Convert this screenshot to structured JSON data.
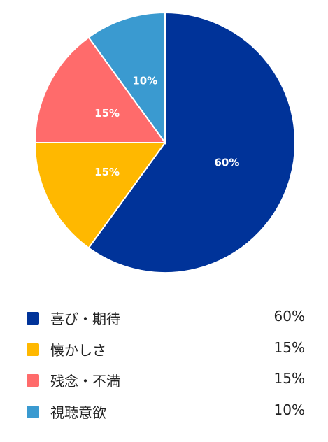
{
  "chart_data": {
    "type": "pie",
    "categories": [
      "喜び・期待",
      "懐かしさ",
      "残念・不満",
      "視聴意欲"
    ],
    "values": [
      60,
      15,
      15,
      10
    ],
    "labels": [
      "60%",
      "15%",
      "15%",
      "10%"
    ],
    "colors": [
      "#003399",
      "#ffb800",
      "#ff6b6b",
      "#3a9ad0"
    ],
    "start_angle": "12 o'clock",
    "direction": "clockwise",
    "legend_position": "bottom"
  },
  "legend": {
    "items": [
      {
        "label": "喜び・期待",
        "value": "60%"
      },
      {
        "label": "懐かしさ",
        "value": "15%"
      },
      {
        "label": "残念・不満",
        "value": "15%"
      },
      {
        "label": "視聴意欲",
        "value": "10%"
      }
    ]
  }
}
